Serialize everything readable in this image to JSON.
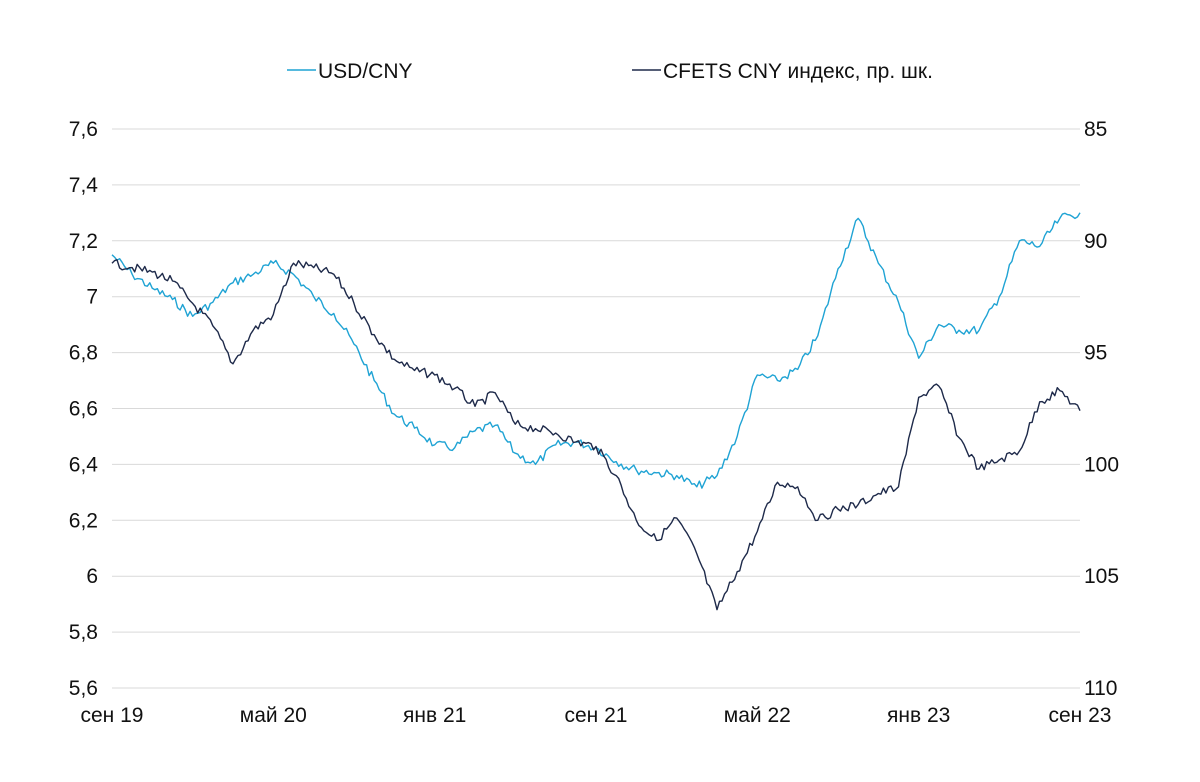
{
  "chart_data": {
    "type": "line",
    "legend": {
      "placement": "top",
      "entries": [
        "USD/CNY",
        "CFETS CNY индекс, пр. шк."
      ]
    },
    "grid": {
      "horizontal": true,
      "vertical": false
    },
    "x_axis": {
      "tick_labels": [
        "сен 19",
        "май 20",
        "янв 21",
        "сен 21",
        "май 22",
        "янв 23",
        "сен 23"
      ],
      "range": [
        "2019-09",
        "2023-09"
      ]
    },
    "y_axis_left": {
      "tick_labels": [
        "7,6",
        "7,4",
        "7,2",
        "7",
        "6,8",
        "6,6",
        "6,4",
        "6,2",
        "6",
        "5,8",
        "5,6"
      ],
      "ylim": [
        5.6,
        7.6
      ]
    },
    "y_axis_right": {
      "tick_labels": [
        "85",
        "90",
        "95",
        "100",
        "105",
        "110"
      ],
      "ylim": [
        110,
        85
      ],
      "inverted": true
    },
    "series": [
      {
        "name": "USD/CNY",
        "axis": "left",
        "color": "#1fa3d4",
        "x": [
          "2019-09",
          "2019-10",
          "2019-11",
          "2019-12",
          "2020-01",
          "2020-02",
          "2020-03",
          "2020-04",
          "2020-05",
          "2020-06",
          "2020-07",
          "2020-08",
          "2020-09",
          "2020-10",
          "2020-11",
          "2020-12",
          "2021-01",
          "2021-02",
          "2021-03",
          "2021-04",
          "2021-05",
          "2021-06",
          "2021-07",
          "2021-08",
          "2021-09",
          "2021-10",
          "2021-11",
          "2021-12",
          "2022-01",
          "2022-02",
          "2022-03",
          "2022-04",
          "2022-05",
          "2022-06",
          "2022-07",
          "2022-08",
          "2022-09",
          "2022-10",
          "2022-11",
          "2022-12",
          "2023-01",
          "2023-02",
          "2023-03",
          "2023-04",
          "2023-05",
          "2023-06",
          "2023-07",
          "2023-08",
          "2023-09"
        ],
        "values": [
          7.15,
          7.08,
          7.03,
          6.99,
          6.93,
          6.98,
          7.05,
          7.08,
          7.12,
          7.08,
          7.0,
          6.94,
          6.83,
          6.7,
          6.58,
          6.53,
          6.47,
          6.46,
          6.52,
          6.54,
          6.44,
          6.4,
          6.47,
          6.48,
          6.46,
          6.41,
          6.38,
          6.37,
          6.36,
          6.32,
          6.36,
          6.5,
          6.72,
          6.7,
          6.74,
          6.86,
          7.1,
          7.28,
          7.12,
          6.98,
          6.78,
          6.9,
          6.88,
          6.88,
          7.0,
          7.2,
          7.18,
          7.28,
          7.3
        ]
      },
      {
        "name": "CFETS CNY индекс, пр. шк.",
        "axis": "right",
        "color": "#1e2a4a",
        "x": [
          "2019-09",
          "2019-10",
          "2019-11",
          "2019-12",
          "2020-01",
          "2020-02",
          "2020-03",
          "2020-04",
          "2020-05",
          "2020-06",
          "2020-07",
          "2020-08",
          "2020-09",
          "2020-10",
          "2020-11",
          "2020-12",
          "2021-01",
          "2021-02",
          "2021-03",
          "2021-04",
          "2021-05",
          "2021-06",
          "2021-07",
          "2021-08",
          "2021-09",
          "2021-10",
          "2021-11",
          "2021-12",
          "2022-01",
          "2022-02",
          "2022-03",
          "2022-04",
          "2022-05",
          "2022-06",
          "2022-07",
          "2022-08",
          "2022-09",
          "2022-10",
          "2022-11",
          "2022-12",
          "2023-01",
          "2023-02",
          "2023-03",
          "2023-04",
          "2023-05",
          "2023-06",
          "2023-07",
          "2023-08",
          "2023-09"
        ],
        "values": [
          91.0,
          91.2,
          91.4,
          91.8,
          92.8,
          93.8,
          95.5,
          94.0,
          93.3,
          91.0,
          91.2,
          91.5,
          92.8,
          94.2,
          95.3,
          95.8,
          96.0,
          96.6,
          97.4,
          96.8,
          98.2,
          98.4,
          98.6,
          99.0,
          99.2,
          100.5,
          102.5,
          103.4,
          102.4,
          104.0,
          106.5,
          104.8,
          103.0,
          100.8,
          101.0,
          102.5,
          102.0,
          101.8,
          101.3,
          101.0,
          97.0,
          96.5,
          98.8,
          100.2,
          99.8,
          99.4,
          97.2,
          96.7,
          97.6
        ]
      }
    ]
  }
}
